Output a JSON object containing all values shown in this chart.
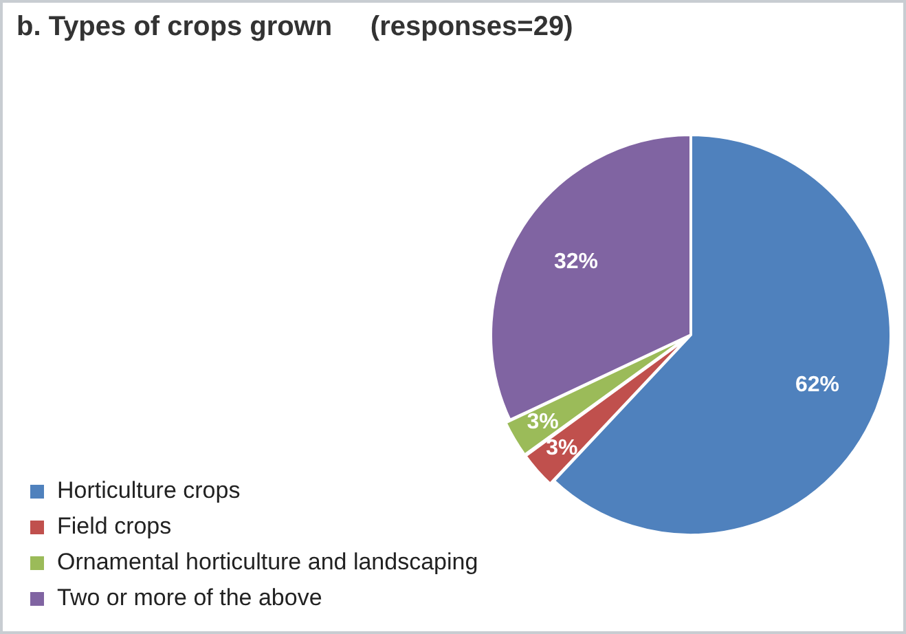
{
  "chart_data": {
    "type": "pie",
    "title": "b. Types of crops grown     (responses=29)",
    "categories": [
      "Horticulture crops",
      "Field crops",
      "Ornamental horticulture and landscaping",
      "Two or more of the above"
    ],
    "values": [
      62,
      3,
      3,
      32
    ],
    "colors": [
      "#4f81bd",
      "#c0504d",
      "#9bbb59",
      "#8064a2"
    ],
    "value_labels": [
      "62%",
      "3%",
      "3%",
      "32%"
    ],
    "legend": "bottom left"
  }
}
